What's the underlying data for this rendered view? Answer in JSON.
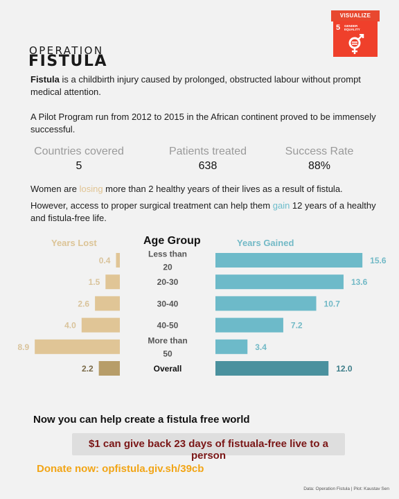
{
  "badge": {
    "header": "VISUALIZE",
    "goal_number": "5",
    "goal_text_1": "GENDER",
    "goal_text_2": "EQUALITY",
    "color": "#ef402b"
  },
  "logo": {
    "line1": "OPERATION",
    "line2": "FISTULA"
  },
  "intro": {
    "bold": "Fistula",
    "rest": " is a childbirth injury caused by prolonged, obstructed labour without prompt medical attention.",
    "pilot": "A Pilot Program run from 2012 to 2015 in the African continent proved to be immensely successful."
  },
  "stats": [
    {
      "label": "Countries covered",
      "value": "5"
    },
    {
      "label": "Patients treated",
      "value": "638"
    },
    {
      "label": "Success Rate",
      "value": "88%"
    }
  ],
  "impact": {
    "p1_before": "Women are ",
    "p1_highlight": "losing",
    "p1_after": " more than 2 healthy years of their lives as a result of fistula.",
    "p2_before": "However, access to proper surgical treatment can help them ",
    "p2_highlight": "gain",
    "p2_after": " 12 years of a healthy and fistula-free life."
  },
  "chart_data": {
    "type": "bar",
    "left_header": "Years Lost",
    "center_header": "Age Group",
    "right_header": "Years Gained",
    "categories": [
      [
        "Less than",
        "20"
      ],
      [
        "20-30"
      ],
      [
        "30-40"
      ],
      [
        "40-50"
      ],
      [
        "More than",
        "50"
      ],
      [
        "Overall"
      ]
    ],
    "series": [
      {
        "name": "Years Lost",
        "values": [
          0.4,
          1.5,
          2.6,
          4.0,
          8.9,
          2.2
        ],
        "labels": [
          "0.4",
          "1.5",
          "2.6",
          "4.0",
          "8.9",
          "2.2"
        ]
      },
      {
        "name": "Years Gained",
        "values": [
          15.6,
          13.6,
          10.7,
          7.2,
          3.4,
          12.0
        ],
        "labels": [
          "15.6",
          "13.6",
          "10.7",
          "7.2",
          "3.4",
          "12.0"
        ]
      }
    ],
    "colors": {
      "lost": "#e0c596",
      "lost_overall": "#b79d69",
      "gained": "#6dbac9",
      "gained_overall": "#4a919e",
      "lost_label": "#d9c39b",
      "gained_label": "#72b9c6"
    }
  },
  "cta": {
    "title": "Now you can help create a fistula free world",
    "box": "$1 can give back 23 days of fistuala-free live to a person",
    "donate": "Donate now: opfistula.giv.sh/39cb"
  },
  "credit": "Data: Operation Fistula | Plot: Kaustav Sen"
}
